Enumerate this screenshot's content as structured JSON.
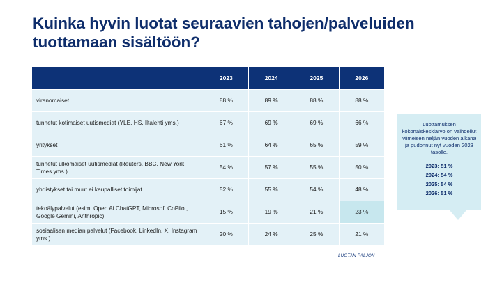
{
  "title": "Kuinka hyvin luotat seuraavien tahojen/palveluiden tuottamaan sisältöön?",
  "table": {
    "headers": [
      "",
      "2023",
      "2024",
      "2025",
      "2026"
    ],
    "rows": [
      {
        "label": "viranomaiset",
        "values": [
          "88 %",
          "89 %",
          "88 %",
          "88 %"
        ]
      },
      {
        "label": "tunnetut kotimaiset uutismediat (YLE, HS, Iltalehti yms.)",
        "values": [
          "67 %",
          "69 %",
          "69 %",
          "66 %"
        ]
      },
      {
        "label": "yritykset",
        "values": [
          "61 %",
          "64 %",
          "65 %",
          "59 %"
        ]
      },
      {
        "label": "tunnetut ulkomaiset uutismediat (Reuters, BBC, New York Times yms.)",
        "values": [
          "54 %",
          "57 %",
          "55 %",
          "50 %"
        ]
      },
      {
        "label": "yhdistykset tai muut ei kaupalliset toimijat",
        "values": [
          "52 %",
          "55 %",
          "54 %",
          "48 %"
        ]
      },
      {
        "label": "tekoälypalvelut (esim. Open Ai ChatGPT, Microsoft CoPilot, Google Gemini, Anthropic)",
        "values": [
          "15 %",
          "19 %",
          "21 %",
          "23 %"
        ]
      },
      {
        "label": "sosiaalisen median palvelut (Facebook, LinkedIn, X, Instagram yms.)",
        "values": [
          "20 %",
          "24 %",
          "25 %",
          "21 %"
        ]
      }
    ]
  },
  "footnote": "LUOTAN PALJON",
  "callout": {
    "text": "Luottamuksen kokonaiskeskiarvo on vaihdellut viimeisen neljän vuoden aikana ja pudonnut nyt vuoden 2023 tasolle.",
    "values": [
      "2023: 51 %",
      "2024: 54 %",
      "2025: 54 %",
      "2026: 51 %"
    ]
  },
  "colors": {
    "title": "#0e2d6b",
    "header_bg": "#0d3277",
    "row_bg": "#e3f1f7",
    "highlight_bg": "#c7e7ee",
    "callout_bg": "#d5edf3"
  }
}
